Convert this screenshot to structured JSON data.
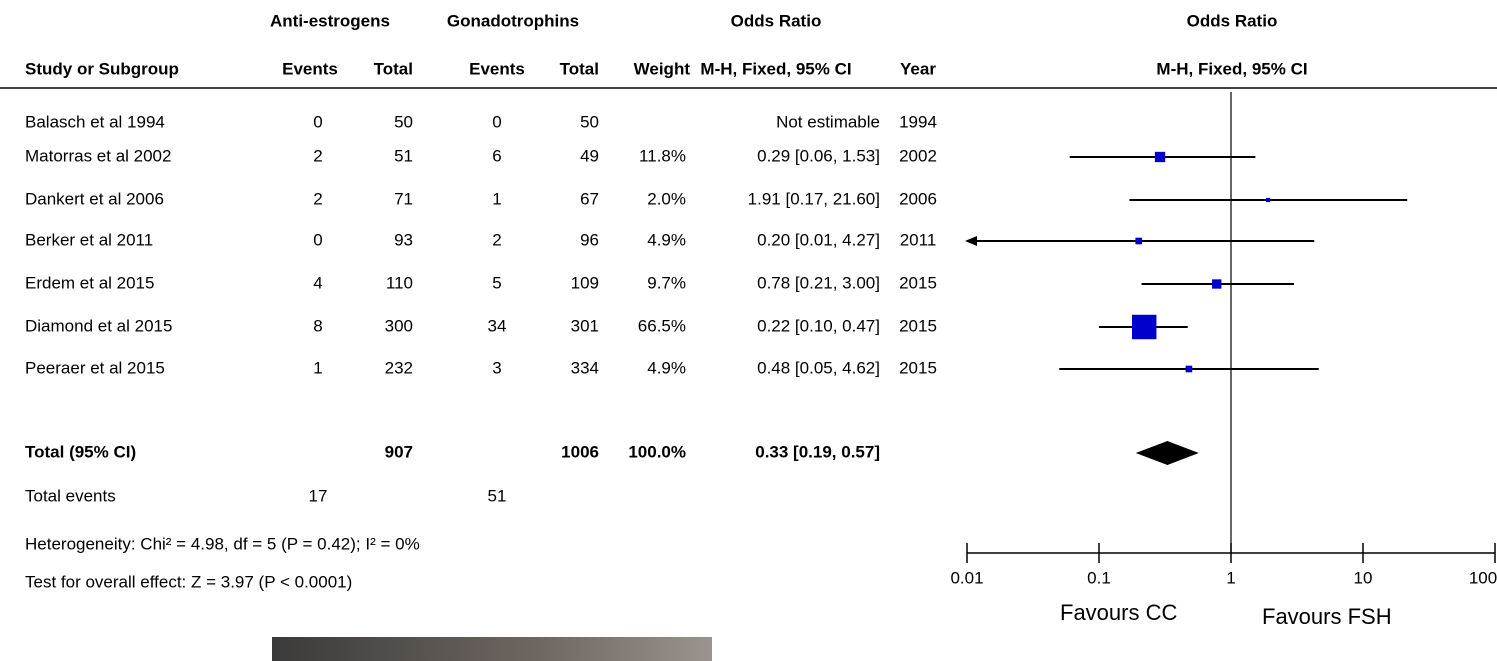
{
  "chart_data": {
    "type": "forest",
    "group_headers": [
      "Anti-estrogens",
      "Gonadotrophins",
      "Odds Ratio"
    ],
    "plot_title": "Odds Ratio",
    "plot_subtitle": "M-H, Fixed, 95% CI",
    "columns": [
      "Study or Subgroup",
      "Events",
      "Total",
      "Events",
      "Total",
      "Weight",
      "M-H, Fixed, 95% CI",
      "Year"
    ],
    "studies": [
      {
        "name": "Balasch et al 1994",
        "events1": 0,
        "total1": 50,
        "events2": 0,
        "total2": 50,
        "weight": null,
        "ci_label": "Not estimable",
        "year": "1994",
        "or": null,
        "ci_low": null,
        "ci_high": null
      },
      {
        "name": "Matorras et al 2002",
        "events1": 2,
        "total1": 51,
        "events2": 6,
        "total2": 49,
        "weight": 11.8,
        "weight_label": "11.8%",
        "ci_label": "0.29 [0.06, 1.53]",
        "year": "2002",
        "or": 0.29,
        "ci_low": 0.06,
        "ci_high": 1.53
      },
      {
        "name": "Dankert et al 2006",
        "events1": 2,
        "total1": 71,
        "events2": 1,
        "total2": 67,
        "weight": 2.0,
        "weight_label": "2.0%",
        "ci_label": "1.91 [0.17, 21.60]",
        "year": "2006",
        "or": 1.91,
        "ci_low": 0.17,
        "ci_high": 21.6
      },
      {
        "name": "Berker et al 2011",
        "events1": 0,
        "total1": 93,
        "events2": 2,
        "total2": 96,
        "weight": 4.9,
        "weight_label": "4.9%",
        "ci_label": "0.20 [0.01, 4.27]",
        "year": "2011",
        "or": 0.2,
        "ci_low": 0.01,
        "ci_high": 4.27
      },
      {
        "name": "Erdem et al 2015",
        "events1": 4,
        "total1": 110,
        "events2": 5,
        "total2": 109,
        "weight": 9.7,
        "weight_label": "9.7%",
        "ci_label": "0.78 [0.21, 3.00]",
        "year": "2015",
        "or": 0.78,
        "ci_low": 0.21,
        "ci_high": 3.0
      },
      {
        "name": "Diamond et al 2015",
        "events1": 8,
        "total1": 300,
        "events2": 34,
        "total2": 301,
        "weight": 66.5,
        "weight_label": "66.5%",
        "ci_label": "0.22 [0.10, 0.47]",
        "year": "2015",
        "or": 0.22,
        "ci_low": 0.1,
        "ci_high": 0.47
      },
      {
        "name": "Peeraer et al 2015",
        "events1": 1,
        "total1": 232,
        "events2": 3,
        "total2": 334,
        "weight": 4.9,
        "weight_label": "4.9%",
        "ci_label": "0.48 [0.05, 4.62]",
        "year": "2015",
        "or": 0.48,
        "ci_low": 0.05,
        "ci_high": 4.62
      }
    ],
    "total": {
      "name": "Total (95% CI)",
      "total1": 907,
      "total2": 1006,
      "weight_label": "100.0%",
      "ci_label": "0.33 [0.19, 0.57]",
      "or": 0.33,
      "ci_low": 0.19,
      "ci_high": 0.57
    },
    "total_events": {
      "label": "Total events",
      "events1": 17,
      "events2": 51
    },
    "heterogeneity": "Heterogeneity: Chi² = 4.98, df = 5 (P = 0.42); I² = 0%",
    "overall_effect": "Test for overall effect: Z = 3.97 (P < 0.0001)",
    "xlim": [
      0.01,
      100
    ],
    "xticks": [
      0.01,
      0.1,
      1,
      10,
      100
    ],
    "log_x": true,
    "favours_left": "Favours CC",
    "favours_right": "Favours FSH",
    "marker_color": "#0000cc",
    "diamond_color": "#000000"
  }
}
